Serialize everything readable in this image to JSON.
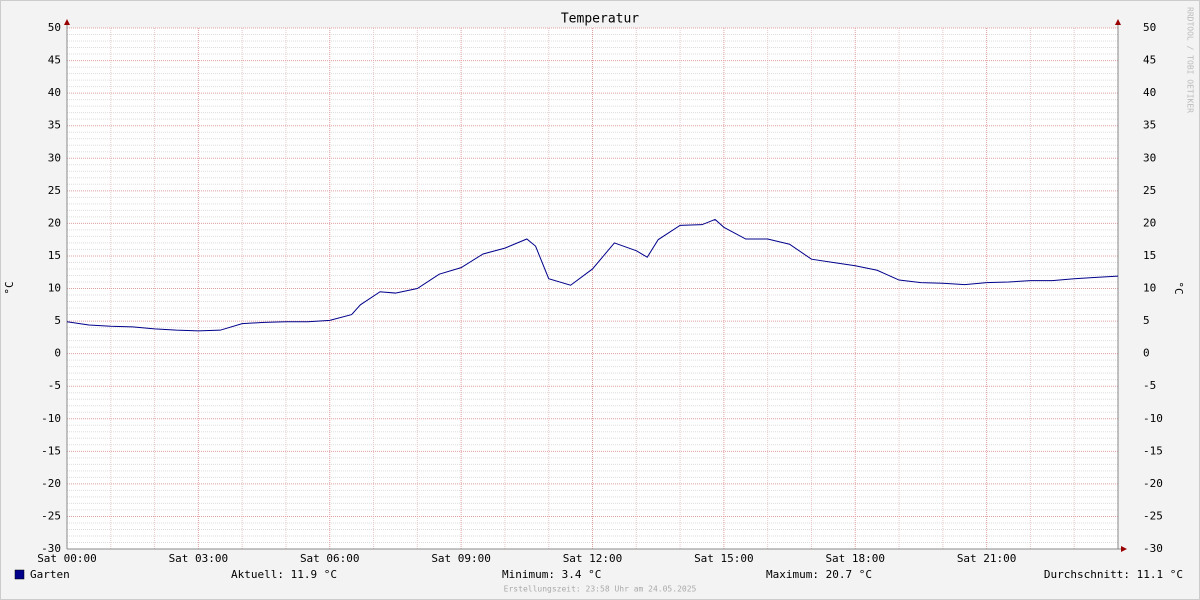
{
  "chart_data": {
    "type": "line",
    "title": "Temperatur",
    "y_label": "°C",
    "watermark": "RRDTOOL / TOBI OETIKER",
    "x": [
      0,
      0.5,
      1,
      1.5,
      2,
      2.5,
      3,
      3.5,
      4,
      4.5,
      5,
      5.5,
      6,
      6.5,
      6.7,
      7.15,
      7.5,
      8,
      8.5,
      9,
      9.5,
      10,
      10.5,
      10.7,
      11,
      11.5,
      12,
      12.5,
      13,
      13.25,
      13.5,
      14,
      14.5,
      14.8,
      15,
      15.5,
      16,
      16.5,
      17,
      17.5,
      18,
      18.5,
      19,
      19.5,
      20,
      20.5,
      21,
      21.5,
      22,
      22.5,
      23,
      23.5,
      24
    ],
    "series": [
      {
        "name": "Garten",
        "color": "#00008b",
        "values": [
          4.9,
          4.4,
          4.2,
          4.1,
          3.8,
          3.6,
          3.5,
          3.6,
          4.6,
          4.8,
          4.9,
          4.9,
          5.1,
          6.0,
          7.5,
          9.5,
          9.3,
          10.0,
          12.2,
          13.2,
          15.3,
          16.2,
          17.6,
          16.5,
          11.5,
          10.5,
          13.0,
          17.0,
          15.8,
          14.8,
          17.5,
          19.7,
          19.8,
          20.6,
          19.4,
          17.6,
          17.6,
          16.8,
          14.5,
          14.0,
          13.5,
          12.8,
          11.3,
          10.9,
          10.8,
          10.6,
          10.9,
          11.0,
          11.2,
          11.2,
          11.5,
          11.7,
          11.9
        ]
      }
    ],
    "xlim": [
      0,
      24
    ],
    "xticks": [
      {
        "value": 0,
        "label": "Sat 00:00"
      },
      {
        "value": 3,
        "label": "Sat 03:00"
      },
      {
        "value": 6,
        "label": "Sat 06:00"
      },
      {
        "value": 9,
        "label": "Sat 09:00"
      },
      {
        "value": 12,
        "label": "Sat 12:00"
      },
      {
        "value": 15,
        "label": "Sat 15:00"
      },
      {
        "value": 18,
        "label": "Sat 18:00"
      },
      {
        "value": 21,
        "label": "Sat 21:00"
      }
    ],
    "ylim": [
      -30,
      50
    ],
    "yticks": [
      -30,
      -25,
      -20,
      -15,
      -10,
      -5,
      0,
      5,
      10,
      15,
      20,
      25,
      30,
      35,
      40,
      45,
      50
    ],
    "grid": true,
    "summary": [
      "Aktuell: 11.9 °C",
      "Minimum: 3.4 °C",
      "Maximum: 20.7 °C",
      "Durchschnitt: 11.1 °C"
    ],
    "footer": "Erstellungszeit: 23:58 Uhr am 24.05.2025"
  }
}
